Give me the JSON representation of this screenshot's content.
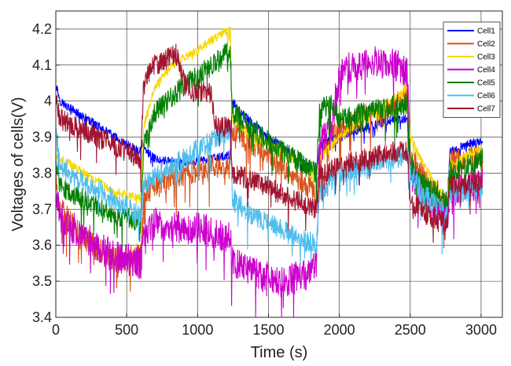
{
  "chart_data": {
    "type": "line",
    "xlabel": "Time (s)",
    "ylabel": "Voltages of cells(V)",
    "xlim": [
      0,
      3150
    ],
    "ylim": [
      3.4,
      4.25
    ],
    "grid": true,
    "legend_position": "top-right",
    "x_ticks": [
      0,
      500,
      1000,
      1500,
      2000,
      2500,
      3000
    ],
    "x_tick_labels": [
      "0",
      "500",
      "1000",
      "1500",
      "2000",
      "2500",
      "3000"
    ],
    "y_ticks": [
      3.4,
      3.5,
      3.6,
      3.7,
      3.8,
      3.9,
      4.0,
      4.1,
      4.2
    ],
    "y_tick_labels": [
      "3.4",
      "3.5",
      "3.6",
      "3.7",
      "3.8",
      "3.9",
      "4",
      "4.1",
      "4.2"
    ],
    "series": [
      {
        "name": "Cell1",
        "color": "#0000ff",
        "noise": 0.012,
        "points": [
          [
            0,
            4.05
          ],
          [
            30,
            4.0
          ],
          [
            100,
            3.98
          ],
          [
            300,
            3.93
          ],
          [
            500,
            3.88
          ],
          [
            590,
            3.86
          ],
          [
            610,
            3.88
          ],
          [
            640,
            3.86
          ],
          [
            700,
            3.84
          ],
          [
            900,
            3.83
          ],
          [
            1100,
            3.84
          ],
          [
            1230,
            3.85
          ],
          [
            1245,
            4.0
          ],
          [
            1300,
            3.97
          ],
          [
            1500,
            3.9
          ],
          [
            1700,
            3.84
          ],
          [
            1840,
            3.8
          ],
          [
            1860,
            3.88
          ],
          [
            2000,
            3.9
          ],
          [
            2200,
            3.93
          ],
          [
            2400,
            3.95
          ],
          [
            2480,
            3.95
          ],
          [
            2500,
            3.8
          ],
          [
            2600,
            3.75
          ],
          [
            2760,
            3.7
          ],
          [
            2780,
            3.86
          ],
          [
            2900,
            3.88
          ],
          [
            3010,
            3.89
          ]
        ]
      },
      {
        "name": "Cell2",
        "color": "#d95319",
        "noise": 0.035,
        "points": [
          [
            0,
            3.78
          ],
          [
            30,
            3.7
          ],
          [
            200,
            3.62
          ],
          [
            400,
            3.56
          ],
          [
            600,
            3.57
          ],
          [
            620,
            3.74
          ],
          [
            700,
            3.77
          ],
          [
            900,
            3.8
          ],
          [
            1100,
            3.82
          ],
          [
            1230,
            3.82
          ],
          [
            1245,
            3.92
          ],
          [
            1400,
            3.88
          ],
          [
            1600,
            3.82
          ],
          [
            1800,
            3.76
          ],
          [
            1840,
            3.72
          ],
          [
            1860,
            3.86
          ],
          [
            2000,
            3.92
          ],
          [
            2200,
            3.96
          ],
          [
            2400,
            3.99
          ],
          [
            2480,
            4.02
          ],
          [
            2500,
            3.85
          ],
          [
            2600,
            3.78
          ],
          [
            2760,
            3.72
          ],
          [
            2780,
            3.83
          ],
          [
            2900,
            3.84
          ],
          [
            3010,
            3.86
          ]
        ]
      },
      {
        "name": "Cell3",
        "color": "#f5d800",
        "noise": 0.012,
        "points": [
          [
            0,
            3.85
          ],
          [
            200,
            3.8
          ],
          [
            400,
            3.75
          ],
          [
            600,
            3.73
          ],
          [
            620,
            3.93
          ],
          [
            700,
            4.04
          ],
          [
            800,
            4.09
          ],
          [
            900,
            4.12
          ],
          [
            1000,
            4.14
          ],
          [
            1100,
            4.17
          ],
          [
            1230,
            4.2
          ],
          [
            1245,
            3.95
          ],
          [
            1400,
            3.9
          ],
          [
            1600,
            3.86
          ],
          [
            1840,
            3.8
          ],
          [
            1860,
            3.85
          ],
          [
            2000,
            3.9
          ],
          [
            2200,
            3.96
          ],
          [
            2400,
            4.01
          ],
          [
            2480,
            4.04
          ],
          [
            2500,
            3.9
          ],
          [
            2600,
            3.82
          ],
          [
            2760,
            3.72
          ],
          [
            2780,
            3.82
          ],
          [
            2900,
            3.85
          ],
          [
            3010,
            3.87
          ]
        ]
      },
      {
        "name": "Cell4",
        "color": "#cc00cc",
        "noise": 0.045,
        "points": [
          [
            0,
            3.75
          ],
          [
            30,
            3.68
          ],
          [
            200,
            3.62
          ],
          [
            400,
            3.57
          ],
          [
            600,
            3.55
          ],
          [
            620,
            3.64
          ],
          [
            700,
            3.66
          ],
          [
            900,
            3.65
          ],
          [
            1100,
            3.64
          ],
          [
            1230,
            3.62
          ],
          [
            1245,
            3.55
          ],
          [
            1400,
            3.52
          ],
          [
            1600,
            3.5
          ],
          [
            1800,
            3.52
          ],
          [
            1840,
            3.55
          ],
          [
            1860,
            3.88
          ],
          [
            1950,
            3.95
          ],
          [
            2000,
            4.07
          ],
          [
            2100,
            4.1
          ],
          [
            2250,
            4.11
          ],
          [
            2400,
            4.1
          ],
          [
            2480,
            4.08
          ],
          [
            2500,
            3.8
          ],
          [
            2600,
            3.72
          ],
          [
            2760,
            3.67
          ],
          [
            2780,
            3.75
          ],
          [
            2900,
            3.76
          ],
          [
            3010,
            3.77
          ]
        ]
      },
      {
        "name": "Cell5",
        "color": "#007f00",
        "noise": 0.03,
        "points": [
          [
            0,
            3.85
          ],
          [
            30,
            3.76
          ],
          [
            200,
            3.73
          ],
          [
            400,
            3.69
          ],
          [
            600,
            3.66
          ],
          [
            620,
            3.87
          ],
          [
            700,
            3.97
          ],
          [
            900,
            4.04
          ],
          [
            1100,
            4.1
          ],
          [
            1230,
            4.14
          ],
          [
            1245,
            3.97
          ],
          [
            1400,
            3.92
          ],
          [
            1600,
            3.86
          ],
          [
            1840,
            3.8
          ],
          [
            1860,
            3.97
          ],
          [
            1950,
            4.0
          ],
          [
            2000,
            3.95
          ],
          [
            2200,
            3.97
          ],
          [
            2400,
            3.99
          ],
          [
            2480,
            3.99
          ],
          [
            2500,
            3.83
          ],
          [
            2600,
            3.77
          ],
          [
            2760,
            3.72
          ],
          [
            2780,
            3.8
          ],
          [
            2900,
            3.82
          ],
          [
            3010,
            3.84
          ]
        ]
      },
      {
        "name": "Cell6",
        "color": "#4dbeee",
        "noise": 0.03,
        "points": [
          [
            0,
            3.92
          ],
          [
            30,
            3.82
          ],
          [
            200,
            3.77
          ],
          [
            400,
            3.73
          ],
          [
            600,
            3.68
          ],
          [
            620,
            3.77
          ],
          [
            700,
            3.79
          ],
          [
            900,
            3.84
          ],
          [
            1100,
            3.89
          ],
          [
            1230,
            3.92
          ],
          [
            1245,
            3.73
          ],
          [
            1400,
            3.68
          ],
          [
            1600,
            3.64
          ],
          [
            1840,
            3.6
          ],
          [
            1860,
            3.74
          ],
          [
            2000,
            3.8
          ],
          [
            2200,
            3.82
          ],
          [
            2400,
            3.84
          ],
          [
            2480,
            3.86
          ],
          [
            2500,
            3.8
          ],
          [
            2600,
            3.74
          ],
          [
            2760,
            3.68
          ],
          [
            2780,
            3.74
          ],
          [
            2900,
            3.75
          ],
          [
            3010,
            3.76
          ]
        ]
      },
      {
        "name": "Cell7",
        "color": "#a2142f",
        "noise": 0.03,
        "points": [
          [
            0,
            4.0
          ],
          [
            30,
            3.95
          ],
          [
            200,
            3.92
          ],
          [
            400,
            3.88
          ],
          [
            600,
            3.84
          ],
          [
            620,
            4.06
          ],
          [
            700,
            4.1
          ],
          [
            850,
            4.13
          ],
          [
            900,
            4.06
          ],
          [
            950,
            4.02
          ],
          [
            1000,
            4.03
          ],
          [
            1100,
            4.02
          ],
          [
            1120,
            3.93
          ],
          [
            1230,
            3.93
          ],
          [
            1245,
            3.8
          ],
          [
            1400,
            3.78
          ],
          [
            1600,
            3.74
          ],
          [
            1840,
            3.7
          ],
          [
            1860,
            3.8
          ],
          [
            2000,
            3.82
          ],
          [
            2200,
            3.84
          ],
          [
            2400,
            3.86
          ],
          [
            2480,
            3.86
          ],
          [
            2500,
            3.72
          ],
          [
            2600,
            3.69
          ],
          [
            2760,
            3.66
          ],
          [
            2780,
            3.76
          ],
          [
            2900,
            3.77
          ],
          [
            3010,
            3.78
          ]
        ]
      }
    ]
  }
}
